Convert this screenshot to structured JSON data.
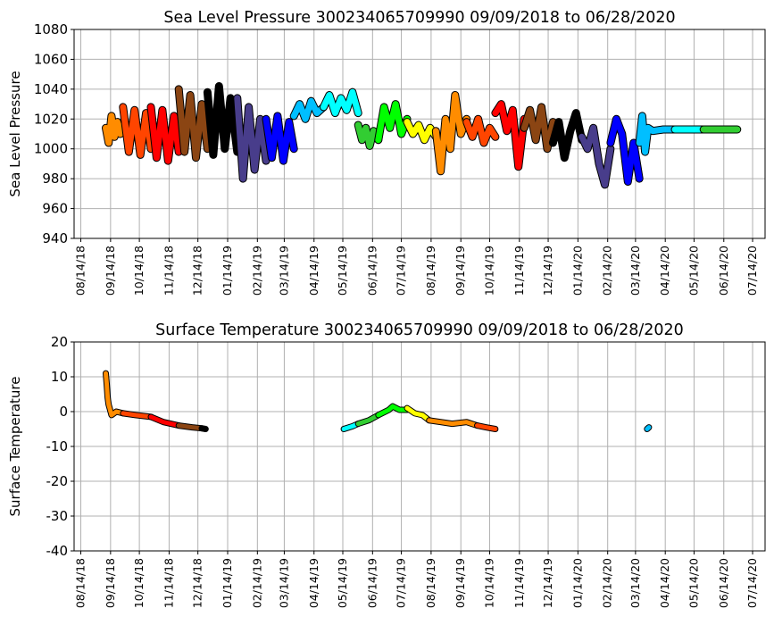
{
  "chart_data": [
    {
      "type": "line",
      "title": "Sea Level Pressure 300234065709990  09/09/2018 to 06/28/2020",
      "ylabel": "Sea Level Pressure",
      "xlabel": "",
      "ylim": [
        940,
        1080
      ],
      "yticks": [
        940,
        960,
        980,
        1000,
        1020,
        1040,
        1060,
        1080
      ],
      "xticks": [
        "08/14/18",
        "09/14/18",
        "10/14/18",
        "11/14/18",
        "12/14/18",
        "01/14/19",
        "02/14/19",
        "03/14/19",
        "04/14/19",
        "05/14/19",
        "06/14/19",
        "07/14/19",
        "08/14/19",
        "09/14/19",
        "10/14/19",
        "11/14/19",
        "12/14/19",
        "01/14/20",
        "02/14/20",
        "03/14/20",
        "04/14/20",
        "05/14/20",
        "06/14/20",
        "07/14/20"
      ],
      "grid": true,
      "series": [
        {
          "color": "#ff8c00",
          "x": [
            "09/09/18",
            "09/12/18",
            "09/15/18",
            "09/18/18",
            "09/21/18",
            "09/24/18",
            "09/27/18"
          ],
          "values": [
            1014,
            1004,
            1022,
            1008,
            1018,
            1010,
            1016
          ]
        },
        {
          "color": "#ff4500",
          "x": [
            "09/27/18",
            "10/03/18",
            "10/09/18",
            "10/15/18",
            "10/21/18",
            "10/26/18"
          ],
          "values": [
            1028,
            998,
            1026,
            996,
            1024,
            1000
          ]
        },
        {
          "color": "#ff0000",
          "x": [
            "10/26/18",
            "11/01/18",
            "11/07/18",
            "11/13/18",
            "11/19/18",
            "11/24/18"
          ],
          "values": [
            1028,
            994,
            1026,
            992,
            1022,
            998
          ]
        },
        {
          "color": "#8b4513",
          "x": [
            "11/24/18",
            "11/30/18",
            "12/06/18",
            "12/12/18",
            "12/18/18",
            "12/24/18"
          ],
          "values": [
            1040,
            998,
            1036,
            994,
            1030,
            1000
          ]
        },
        {
          "color": "#000000",
          "x": [
            "12/24/18",
            "12/30/18",
            "01/05/19",
            "01/11/19",
            "01/17/19",
            "01/24/19"
          ],
          "values": [
            1038,
            996,
            1042,
            1000,
            1034,
            998
          ]
        },
        {
          "color": "#483d8b",
          "x": [
            "01/24/19",
            "01/30/19",
            "02/05/19",
            "02/11/19",
            "02/17/19",
            "02/23/19"
          ],
          "values": [
            1034,
            980,
            1028,
            986,
            1020,
            992
          ]
        },
        {
          "color": "#0000ff",
          "x": [
            "02/23/19",
            "03/01/19",
            "03/07/19",
            "03/13/19",
            "03/19/19",
            "03/24/19"
          ],
          "values": [
            1020,
            994,
            1022,
            992,
            1018,
            1000
          ]
        },
        {
          "color": "#00bfff",
          "x": [
            "03/24/19",
            "03/30/19",
            "04/05/19",
            "04/11/19",
            "04/17/19",
            "04/24/19"
          ],
          "values": [
            1022,
            1030,
            1020,
            1032,
            1024,
            1028
          ]
        },
        {
          "color": "#00ffff",
          "x": [
            "04/24/19",
            "04/30/19",
            "05/06/19",
            "05/12/19",
            "05/18/19",
            "05/24/19",
            "05/30/19"
          ],
          "values": [
            1028,
            1036,
            1024,
            1034,
            1026,
            1038,
            1024
          ]
        },
        {
          "color": "#32cd32",
          "x": [
            "05/30/19",
            "06/03/19",
            "06/07/19",
            "06/11/19",
            "06/15/19",
            "06/20/19"
          ],
          "values": [
            1016,
            1006,
            1014,
            1002,
            1012,
            1006
          ]
        },
        {
          "color": "#00ff00",
          "x": [
            "06/20/19",
            "06/26/19",
            "07/02/19",
            "07/08/19",
            "07/14/19",
            "07/20/19"
          ],
          "values": [
            1006,
            1028,
            1014,
            1030,
            1010,
            1020
          ]
        },
        {
          "color": "#ffff00",
          "x": [
            "07/20/19",
            "07/26/19",
            "08/01/19",
            "08/07/19",
            "08/13/19",
            "08/19/19"
          ],
          "values": [
            1018,
            1010,
            1016,
            1006,
            1014,
            1008
          ]
        },
        {
          "color": "#ff8c00",
          "x": [
            "08/19/19",
            "08/24/19",
            "08/29/19",
            "09/03/19",
            "09/08/19",
            "09/14/19",
            "09/20/19"
          ],
          "values": [
            1012,
            985,
            1020,
            1000,
            1036,
            1010,
            1020
          ]
        },
        {
          "color": "#ff4500",
          "x": [
            "09/20/19",
            "09/26/19",
            "10/02/19",
            "10/08/19",
            "10/14/19",
            "10/20/19"
          ],
          "values": [
            1018,
            1008,
            1020,
            1004,
            1014,
            1008
          ]
        },
        {
          "color": "#ff0000",
          "x": [
            "10/20/19",
            "10/26/19",
            "11/01/19",
            "11/07/19",
            "11/13/19",
            "11/19/19"
          ],
          "values": [
            1024,
            1030,
            1012,
            1026,
            988,
            1020
          ]
        },
        {
          "color": "#8b4513",
          "x": [
            "11/19/19",
            "11/25/19",
            "12/01/19",
            "12/07/19",
            "12/13/19",
            "12/19/19"
          ],
          "values": [
            1014,
            1026,
            1006,
            1028,
            1000,
            1018
          ]
        },
        {
          "color": "#000000",
          "x": [
            "12/19/19",
            "12/25/19",
            "12/31/19",
            "01/06/20",
            "01/12/20",
            "01/18/20"
          ],
          "values": [
            1004,
            1018,
            994,
            1012,
            1024,
            1006
          ]
        },
        {
          "color": "#483d8b",
          "x": [
            "01/18/20",
            "01/24/20",
            "01/30/20",
            "02/05/20",
            "02/11/20",
            "02/17/20"
          ],
          "values": [
            1008,
            1000,
            1014,
            990,
            976,
            1000
          ]
        },
        {
          "color": "#0000ff",
          "x": [
            "02/17/20",
            "02/23/20",
            "02/29/20",
            "03/06/20",
            "03/12/20",
            "03/18/20"
          ],
          "values": [
            1004,
            1020,
            1010,
            978,
            1004,
            980
          ]
        },
        {
          "color": "#00bfff",
          "x": [
            "03/18/20",
            "03/21/20",
            "03/24/20",
            "03/27/20",
            "04/01/20",
            "04/12/20",
            "04/24/20"
          ],
          "values": [
            1004,
            1022,
            998,
            1014,
            1012,
            1013,
            1013
          ]
        },
        {
          "color": "#00ffff",
          "x": [
            "04/24/20",
            "05/02/20",
            "05/10/20",
            "05/18/20",
            "05/24/20"
          ],
          "values": [
            1013,
            1013,
            1013,
            1013,
            1013
          ]
        },
        {
          "color": "#32cd32",
          "x": [
            "05/24/20",
            "06/04/20",
            "06/14/20",
            "06/28/20"
          ],
          "values": [
            1013,
            1013,
            1013,
            1013
          ]
        }
      ]
    },
    {
      "type": "line",
      "title": "Surface Temperature 300234065709990  09/09/2018 to 06/28/2020",
      "ylabel": "Surface Temperature",
      "xlabel": "",
      "ylim": [
        -40,
        20
      ],
      "yticks": [
        -40,
        -30,
        -20,
        -10,
        0,
        10,
        20
      ],
      "xticks": [
        "08/14/18",
        "09/14/18",
        "10/14/18",
        "11/14/18",
        "12/14/18",
        "01/14/19",
        "02/14/19",
        "03/14/19",
        "04/14/19",
        "05/14/19",
        "06/14/19",
        "07/14/19",
        "08/14/19",
        "09/14/19",
        "10/14/19",
        "11/14/19",
        "12/14/19",
        "01/14/20",
        "02/14/20",
        "03/14/20",
        "04/14/20",
        "05/14/20",
        "06/14/20",
        "07/14/20"
      ],
      "grid": true,
      "series": [
        {
          "color": "#ff8c00",
          "x": [
            "09/09/18",
            "09/10/18",
            "09/11/18",
            "09/12/18",
            "09/13/18",
            "09/15/18",
            "09/20/18",
            "09/27/18"
          ],
          "values": [
            11,
            8,
            4,
            2,
            1,
            -1,
            0,
            -0.5
          ]
        },
        {
          "color": "#ff4500",
          "x": [
            "09/27/18",
            "10/10/18",
            "10/26/18"
          ],
          "values": [
            -0.5,
            -1,
            -1.5
          ]
        },
        {
          "color": "#ff0000",
          "x": [
            "10/26/18",
            "11/08/18",
            "11/24/18"
          ],
          "values": [
            -1.5,
            -3,
            -4
          ]
        },
        {
          "color": "#8b4513",
          "x": [
            "11/24/18",
            "12/08/18",
            "12/18/18"
          ],
          "values": [
            -4,
            -4.5,
            -4.8
          ]
        },
        {
          "color": "#000000",
          "x": [
            "12/18/18",
            "12/22/18"
          ],
          "values": [
            -4.8,
            -5
          ]
        },
        {
          "color": "#00ffff",
          "x": [
            "05/15/19",
            "05/24/19",
            "05/30/19"
          ],
          "values": [
            -5,
            -4.2,
            -3.5
          ]
        },
        {
          "color": "#32cd32",
          "x": [
            "05/30/19",
            "06/10/19",
            "06/20/19"
          ],
          "values": [
            -3.5,
            -2.5,
            -1
          ]
        },
        {
          "color": "#00ff00",
          "x": [
            "06/20/19",
            "07/01/19",
            "07/05/19",
            "07/12/19",
            "07/20/19"
          ],
          "values": [
            -1,
            0.5,
            1.5,
            0.5,
            0.5
          ]
        },
        {
          "color": "#ffff00",
          "x": [
            "07/20/19",
            "07/28/19",
            "08/05/19",
            "08/12/19"
          ],
          "values": [
            1,
            -0.5,
            -1,
            -2.5
          ]
        },
        {
          "color": "#ff8c00",
          "x": [
            "08/12/19",
            "08/24/19",
            "09/05/19",
            "09/20/19",
            "10/01/19"
          ],
          "values": [
            -2.5,
            -3,
            -3.5,
            -3,
            -4
          ]
        },
        {
          "color": "#ff4500",
          "x": [
            "10/01/19",
            "10/10/19",
            "10/20/19"
          ],
          "values": [
            -4,
            -4.5,
            -5
          ]
        },
        {
          "color": "#00bfff",
          "x": [
            "03/26/20",
            "03/28/20"
          ],
          "values": [
            -5,
            -4.5
          ]
        }
      ]
    }
  ]
}
